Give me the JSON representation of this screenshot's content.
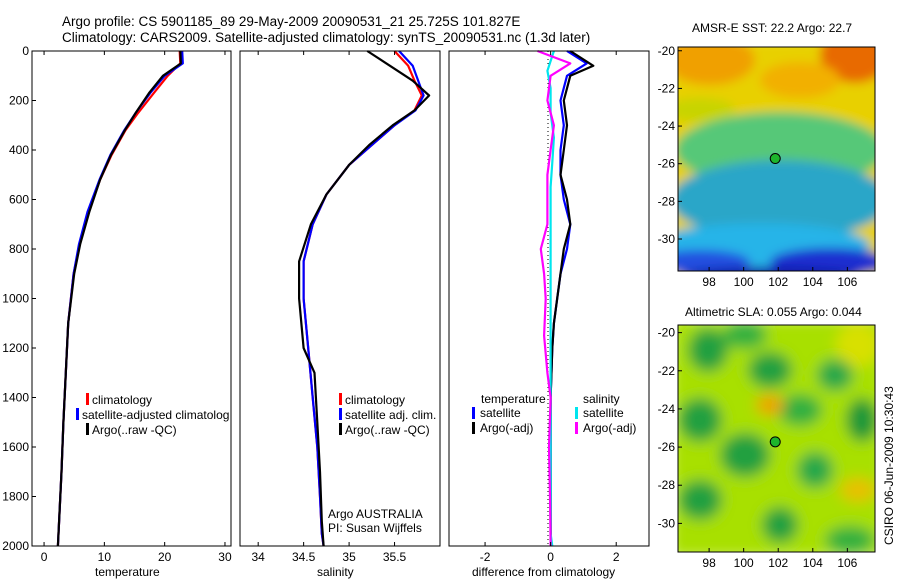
{
  "header": {
    "line1": "Argo profile: CS 5901185_89 29-May-2009 20090531_21 25.725S 101.827E",
    "line2": "Climatology: CARS2009. Satellite-adjusted climatology: synTS_20090531.nc (1.3d later)"
  },
  "footer": {
    "institution_line": "Argo AUSTRALIA",
    "pi_line": "PI: Susan Wijffels",
    "stamp": "CSIRO 06-Jun-2009 10:30:43"
  },
  "colors": {
    "climatology": "#ff0000",
    "satellite": "#0000ff",
    "argo": "#000000",
    "sal_satellite": "#00e5ee",
    "sal_argo": "#ff00ff"
  },
  "chart_data": [
    {
      "type": "line",
      "xlabel": "temperature",
      "ylabel": "",
      "xlim": [
        -2,
        31
      ],
      "ylim": [
        2000,
        0
      ],
      "xticks": [
        0,
        10,
        20,
        30
      ],
      "yticks": [
        0,
        200,
        400,
        600,
        800,
        1000,
        1200,
        1400,
        1600,
        1800,
        2000
      ],
      "legend": [
        "climatology",
        "satellite-adjusted climatolog",
        "Argo(..raw -QC)"
      ],
      "series": [
        {
          "name": "climatology",
          "color": "#ff0000",
          "x": [
            22.5,
            22.6,
            20.5,
            18.2,
            15.6,
            13.5,
            11.2,
            9.3,
            7.3,
            5.9,
            4.9,
            4.0,
            3.6,
            3.2,
            2.9,
            2.6,
            2.4,
            2.3
          ],
          "y": [
            0,
            50,
            100,
            170,
            250,
            320,
            420,
            520,
            650,
            780,
            900,
            1100,
            1300,
            1500,
            1700,
            1850,
            1950,
            2000
          ]
        },
        {
          "name": "satellite-adjusted climatology",
          "color": "#0000ff",
          "x": [
            22.9,
            23.0,
            20.0,
            17.6,
            15.2,
            13.3,
            11.0,
            9.2,
            7.2,
            5.8,
            4.9,
            4.0,
            3.6,
            3.2,
            2.9,
            2.6,
            2.4,
            2.3
          ],
          "y": [
            0,
            50,
            100,
            170,
            250,
            320,
            420,
            520,
            650,
            780,
            900,
            1100,
            1300,
            1500,
            1700,
            1850,
            1950,
            2000
          ]
        },
        {
          "name": "Argo(..raw -QC)",
          "color": "#000000",
          "x": [
            22.6,
            22.7,
            19.7,
            17.4,
            15.2,
            13.4,
            11.1,
            9.3,
            7.5,
            6.0,
            5.0,
            4.0,
            3.6,
            3.2,
            2.9,
            2.6,
            2.4,
            2.3
          ],
          "y": [
            0,
            50,
            100,
            170,
            250,
            320,
            420,
            520,
            650,
            780,
            900,
            1100,
            1300,
            1500,
            1700,
            1850,
            1950,
            2000
          ]
        }
      ]
    },
    {
      "type": "line",
      "xlabel": "salinity",
      "xlim": [
        33.8,
        36.0
      ],
      "ylim": [
        2000,
        0
      ],
      "xticks": [
        34,
        34.5,
        35,
        35.5
      ],
      "legend": [
        "climatology",
        "satellite adj. clim.",
        "Argo(..raw -QC)"
      ],
      "series": [
        {
          "name": "climatology",
          "color": "#ff0000",
          "x": [
            35.5,
            35.65,
            35.72,
            35.8,
            35.72,
            35.5,
            35.25,
            35.0,
            34.75,
            34.6,
            34.5,
            34.5,
            34.55,
            34.6,
            34.65,
            34.68,
            34.7,
            34.72
          ],
          "y": [
            0,
            60,
            120,
            180,
            240,
            300,
            380,
            460,
            580,
            700,
            850,
            1000,
            1200,
            1400,
            1600,
            1800,
            1950,
            2000
          ]
        },
        {
          "name": "satellite adj. clim.",
          "color": "#0000ff",
          "x": [
            35.55,
            35.7,
            35.76,
            35.82,
            35.73,
            35.5,
            35.25,
            35.0,
            34.75,
            34.6,
            34.5,
            34.5,
            34.55,
            34.6,
            34.65,
            34.68,
            34.7,
            34.72
          ],
          "y": [
            0,
            60,
            120,
            180,
            240,
            300,
            380,
            460,
            580,
            700,
            850,
            1000,
            1200,
            1400,
            1600,
            1800,
            1950,
            2000
          ]
        },
        {
          "name": "Argo(..raw -QC)",
          "color": "#000000",
          "x": [
            35.2,
            35.45,
            35.7,
            35.88,
            35.72,
            35.48,
            35.22,
            35.0,
            34.75,
            34.58,
            34.45,
            34.45,
            34.5,
            34.62,
            34.65,
            34.68,
            34.7,
            34.72
          ],
          "y": [
            0,
            60,
            120,
            180,
            240,
            300,
            380,
            460,
            580,
            700,
            850,
            1000,
            1200,
            1300,
            1500,
            1700,
            1900,
            2000
          ]
        }
      ]
    },
    {
      "type": "line",
      "xlabel": "difference from climatology",
      "xlim": [
        -3.1,
        3.0
      ],
      "ylim": [
        2000,
        0
      ],
      "xticks": [
        -2,
        0,
        2
      ],
      "legend": [
        "temperature",
        "satellite",
        "Argo(-adj)",
        "salinity",
        "satellite",
        "Argo(-adj)"
      ],
      "series": [
        {
          "name": "temperature satellite",
          "color": "#0000ff",
          "x": [
            0.5,
            1.1,
            0.5,
            0.3,
            0.4,
            0.3,
            0.3,
            0.4,
            0.6,
            0.5,
            0.3,
            0.2,
            0.1,
            0.05,
            0.0,
            0.0,
            0.0,
            0.0
          ],
          "y": [
            0,
            50,
            100,
            200,
            300,
            400,
            500,
            600,
            700,
            800,
            900,
            1000,
            1100,
            1200,
            1400,
            1600,
            1800,
            2000
          ]
        },
        {
          "name": "temperature Argo(-adj)",
          "color": "#000000",
          "x": [
            0.6,
            1.3,
            0.6,
            0.4,
            0.5,
            0.4,
            0.3,
            0.5,
            0.6,
            0.4,
            0.3,
            0.2,
            0.1,
            0.05,
            0.0,
            0.0,
            0.0,
            0.0
          ],
          "y": [
            0,
            60,
            100,
            200,
            300,
            400,
            500,
            600,
            700,
            800,
            900,
            1000,
            1100,
            1200,
            1400,
            1600,
            1800,
            2000
          ]
        },
        {
          "name": "salinity satellite",
          "color": "#00e5ee",
          "x": [
            0.1,
            -0.1,
            0.0,
            0.0,
            0.1,
            0.05,
            0.0,
            0.0,
            0.0,
            0.0,
            0.0,
            0.0,
            0.0,
            0.0,
            0.0,
            0.0,
            0.0,
            0.05
          ],
          "y": [
            0,
            80,
            150,
            250,
            350,
            450,
            550,
            650,
            750,
            850,
            950,
            1100,
            1300,
            1500,
            1700,
            1850,
            1950,
            2000
          ]
        },
        {
          "name": "salinity Argo(-adj)",
          "color": "#ff00ff",
          "x": [
            -0.4,
            0.6,
            0.0,
            -0.1,
            0.1,
            0.0,
            -0.1,
            -0.1,
            -0.1,
            -0.3,
            -0.2,
            -0.15,
            -0.2,
            -0.1,
            0.0,
            -0.05,
            -0.02,
            0.0
          ],
          "y": [
            0,
            50,
            100,
            200,
            300,
            400,
            500,
            600,
            700,
            800,
            900,
            1000,
            1150,
            1300,
            1400,
            1600,
            1800,
            2000
          ]
        }
      ]
    },
    {
      "type": "heatmap",
      "title": "AMSR-E SST: 22.2 Argo: 22.7",
      "xlim": [
        96.2,
        107.6
      ],
      "ylim": [
        -31.7,
        -19.8
      ],
      "xticks": [
        98,
        100,
        102,
        104,
        106
      ],
      "yticks": [
        -20,
        -22,
        -24,
        -26,
        -28,
        -30
      ],
      "marker": {
        "lon": 101.827,
        "lat": -25.725
      }
    },
    {
      "type": "heatmap",
      "title": "Altimetric SLA: 0.055 Argo: 0.044",
      "xlim": [
        96.2,
        107.6
      ],
      "ylim": [
        -31.5,
        -19.6
      ],
      "xticks": [
        98,
        100,
        102,
        104,
        106
      ],
      "yticks": [
        -20,
        -22,
        -24,
        -26,
        -28,
        -30
      ],
      "marker": {
        "lon": 101.827,
        "lat": -25.725
      }
    }
  ]
}
